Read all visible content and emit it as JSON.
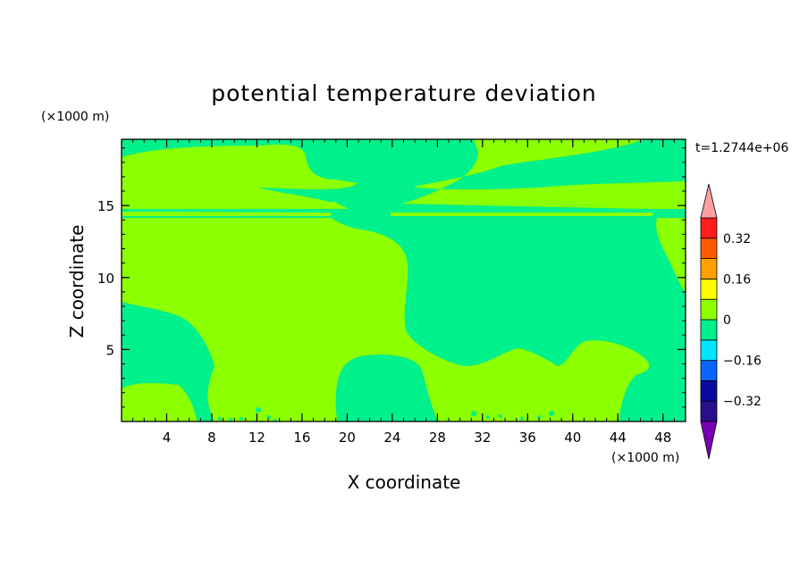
{
  "chart_data": {
    "type": "heatmap",
    "title": "potential temperature deviation",
    "xlabel": "X coordinate",
    "ylabel": "Z coordinate",
    "x_unit": "(×1000 m)",
    "y_unit": "(×1000 m)",
    "time_label": "t=1.2744e+06",
    "xlim": [
      0,
      50
    ],
    "ylim": [
      0,
      19.6
    ],
    "x_ticks": [
      4,
      8,
      12,
      16,
      20,
      24,
      28,
      32,
      36,
      40,
      44,
      48
    ],
    "x_minor_step": 1,
    "y_ticks": [
      5,
      10,
      15
    ],
    "y_minor_step": 1,
    "colorbar": {
      "levels": [
        -0.4,
        -0.32,
        -0.24,
        -0.16,
        -0.08,
        0,
        0.08,
        0.16,
        0.24,
        0.32,
        0.4
      ],
      "tick_labels": [
        "0.32",
        "0.16",
        "0",
        "−0.16",
        "−0.32"
      ],
      "tick_values": [
        0.32,
        0.16,
        0,
        -0.16,
        -0.32
      ],
      "bin_colors": [
        "#2a0f8c",
        "#0a0aa0",
        "#0a64ff",
        "#00e6ff",
        "#00f08c",
        "#8cff00",
        "#ffff00",
        "#ffa000",
        "#ff5a00",
        "#ff1e1e"
      ],
      "under_color": "#7800b4",
      "over_color": "#ffa0a0"
    },
    "field_bins": [
      {
        "range": [
          -0.08,
          0
        ],
        "color": "#00f08c"
      },
      {
        "range": [
          0,
          0.08
        ],
        "color": "#8cff00"
      }
    ]
  }
}
